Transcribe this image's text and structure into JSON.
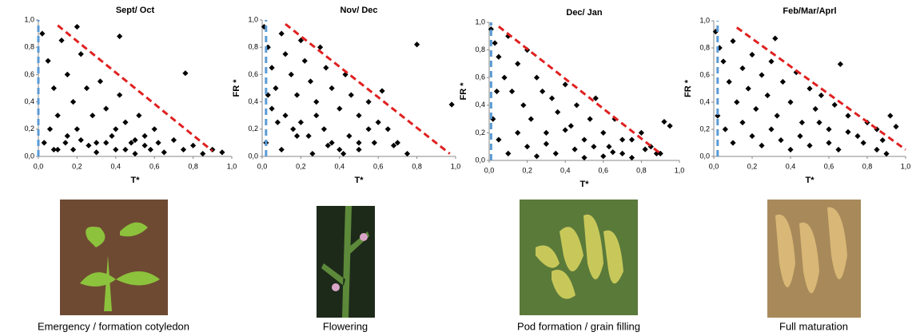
{
  "chart_data": [
    {
      "type": "scatter",
      "title": "Sept/ Oct",
      "xlabel": "T*",
      "caption": "Emergency / formation cotyledon",
      "color": "#000000",
      "xlim": [
        0,
        1
      ],
      "ylim": [
        0,
        1
      ],
      "xticks": [
        {
          "value": 0,
          "label": "0,0"
        },
        {
          "value": 0.2,
          "label": "0,2"
        },
        {
          "value": 0.4,
          "label": "0,4"
        },
        {
          "value": 0.6,
          "label": "0,6"
        },
        {
          "value": 0.8,
          "label": "0,8"
        },
        {
          "value": 1,
          "label": "1,0"
        }
      ],
      "yticks": [
        {
          "value": 0,
          "label": "0,0"
        },
        {
          "value": 0.2,
          "label": "0,2"
        },
        {
          "value": 0.4,
          "label": "0,4"
        },
        {
          "value": 0.6,
          "label": "0,6"
        },
        {
          "value": 0.8,
          "label": "0,8"
        },
        {
          "value": 1,
          "label": "1,0"
        }
      ],
      "x": [
        0.02,
        0.05,
        0.08,
        0.1,
        0.12,
        0.15,
        0.18,
        0.2,
        0.22,
        0.25,
        0.28,
        0.3,
        0.32,
        0.35,
        0.38,
        0.4,
        0.42,
        0.45,
        0.48,
        0.5,
        0.52,
        0.55,
        0.58,
        0.6,
        0.62,
        0.65,
        0.7,
        0.75,
        0.8,
        0.85,
        0.9,
        0.95,
        0.03,
        0.06,
        0.1,
        0.14,
        0.18,
        0.22,
        0.26,
        0.3,
        0.35,
        0.4,
        0.45,
        0.5,
        0.55,
        0.42,
        0.76,
        0.2,
        0.15,
        0.08
      ],
      "y": [
        0.9,
        0.7,
        0.5,
        0.3,
        0.85,
        0.6,
        0.4,
        0.2,
        0.75,
        0.5,
        0.3,
        0.1,
        0.55,
        0.35,
        0.15,
        0.05,
        0.45,
        0.25,
        0.1,
        0.02,
        0.3,
        0.15,
        0.05,
        0.2,
        0.1,
        0.03,
        0.12,
        0.05,
        0.08,
        0.02,
        0.05,
        0.03,
        0.1,
        0.2,
        0.05,
        0.1,
        0.05,
        0.12,
        0.08,
        0.03,
        0.1,
        0.2,
        0.05,
        0.12,
        0.08,
        0.88,
        0.61,
        0.95,
        0.15,
        0.05
      ],
      "lines": [
        {
          "color": "#e02020",
          "x": [
            0.1,
            0.9
          ],
          "y": [
            0.96,
            0.04
          ]
        },
        {
          "color": "#5b9bd5",
          "x": [
            0,
            0
          ],
          "y": [
            0,
            1
          ]
        }
      ]
    },
    {
      "type": "scatter",
      "title": "Nov/ Dec",
      "xlabel": "T*",
      "ylabel": "FR *",
      "caption": "Flowering",
      "color": "#000000",
      "xlim": [
        0,
        1
      ],
      "ylim": [
        0,
        1
      ],
      "xticks": [
        {
          "value": 0,
          "label": "0,0"
        },
        {
          "value": 0.2,
          "label": "0,2"
        },
        {
          "value": 0.4,
          "label": "0,4"
        },
        {
          "value": 0.6,
          "label": "0,6"
        },
        {
          "value": 0.8,
          "label": "0,8"
        },
        {
          "value": 1,
          "label": "1,0"
        }
      ],
      "yticks": [
        {
          "value": 0,
          "label": "0,0"
        },
        {
          "value": 0.2,
          "label": "0,2"
        },
        {
          "value": 0.4,
          "label": "0,4"
        },
        {
          "value": 0.6,
          "label": "0,6"
        },
        {
          "value": 0.8,
          "label": "0,8"
        },
        {
          "value": 1,
          "label": "1,0"
        }
      ],
      "x": [
        0.01,
        0.03,
        0.05,
        0.07,
        0.1,
        0.12,
        0.15,
        0.18,
        0.2,
        0.22,
        0.25,
        0.28,
        0.3,
        0.33,
        0.36,
        0.4,
        0.43,
        0.46,
        0.5,
        0.55,
        0.6,
        0.65,
        0.7,
        0.8,
        0.05,
        0.08,
        0.12,
        0.16,
        0.2,
        0.24,
        0.28,
        0.32,
        0.36,
        0.4,
        0.45,
        0.5,
        0.55,
        0.62,
        0.68,
        0.75,
        0.02,
        0.1,
        0.18,
        0.26,
        0.34,
        0.42,
        0.5,
        0.58,
        0.98,
        0.03
      ],
      "y": [
        0.95,
        0.8,
        0.65,
        0.5,
        0.9,
        0.75,
        0.6,
        0.45,
        0.85,
        0.7,
        0.55,
        0.4,
        0.8,
        0.65,
        0.5,
        0.35,
        0.6,
        0.45,
        0.3,
        0.4,
        0.25,
        0.2,
        0.1,
        0.82,
        0.35,
        0.25,
        0.3,
        0.2,
        0.25,
        0.15,
        0.3,
        0.2,
        0.1,
        0.05,
        0.15,
        0.1,
        0.2,
        0.48,
        0.08,
        0.02,
        0.1,
        0.05,
        0.15,
        0.02,
        0.08,
        0.02,
        0.05,
        0.1,
        0.38,
        0.45
      ],
      "lines": [
        {
          "color": "#e02020",
          "x": [
            0.12,
            0.97
          ],
          "y": [
            0.97,
            0.02
          ]
        },
        {
          "color": "#5b9bd5",
          "x": [
            0.02,
            0.02
          ],
          "y": [
            0,
            1
          ]
        }
      ]
    },
    {
      "type": "scatter",
      "title": "Dec/ Jan",
      "xlabel": "T*",
      "ylabel": "FR *",
      "caption": "Pod formation / grain filling",
      "color": "#000000",
      "xlim": [
        0,
        1
      ],
      "ylim": [
        0,
        1
      ],
      "xticks": [
        {
          "value": 0,
          "label": "0,0"
        },
        {
          "value": 0.2,
          "label": "0,2"
        },
        {
          "value": 0.4,
          "label": "0,4"
        },
        {
          "value": 0.6,
          "label": "0,6"
        },
        {
          "value": 0.8,
          "label": "0,8"
        },
        {
          "value": 1,
          "label": "1,0"
        }
      ],
      "yticks": [
        {
          "value": 0,
          "label": "0,0"
        },
        {
          "value": 0.2,
          "label": "0,2"
        },
        {
          "value": 0.4,
          "label": "0,4"
        },
        {
          "value": 0.6,
          "label": "0,6"
        },
        {
          "value": 0.8,
          "label": "0,8"
        },
        {
          "value": 1,
          "label": "1,0"
        }
      ],
      "x": [
        0.01,
        0.03,
        0.05,
        0.08,
        0.1,
        0.12,
        0.15,
        0.18,
        0.2,
        0.22,
        0.25,
        0.28,
        0.3,
        0.33,
        0.36,
        0.4,
        0.43,
        0.46,
        0.5,
        0.53,
        0.56,
        0.6,
        0.63,
        0.66,
        0.7,
        0.75,
        0.8,
        0.85,
        0.88,
        0.92,
        0.95,
        0.02,
        0.05,
        0.1,
        0.15,
        0.2,
        0.25,
        0.3,
        0.35,
        0.4,
        0.45,
        0.5,
        0.55,
        0.6,
        0.65,
        0.7,
        0.75,
        0.82,
        0.9,
        0.04
      ],
      "y": [
        0.95,
        0.85,
        0.75,
        0.6,
        0.9,
        0.5,
        0.7,
        0.4,
        0.8,
        0.3,
        0.6,
        0.5,
        0.2,
        0.45,
        0.35,
        0.55,
        0.25,
        0.4,
        0.15,
        0.3,
        0.45,
        0.2,
        0.1,
        0.3,
        0.05,
        0.15,
        0.2,
        0.1,
        0.05,
        0.28,
        0.25,
        0.3,
        0.15,
        0.05,
        0.2,
        0.1,
        0.03,
        0.12,
        0.05,
        0.22,
        0.08,
        0.02,
        0.1,
        0.03,
        0.06,
        0.15,
        0.02,
        0.08,
        0.05,
        0.5
      ],
      "lines": [
        {
          "color": "#e02020",
          "x": [
            0.05,
            0.9
          ],
          "y": [
            0.97,
            0.05
          ]
        },
        {
          "color": "#5b9bd5",
          "x": [
            0.01,
            0.01
          ],
          "y": [
            0,
            1
          ]
        }
      ]
    },
    {
      "type": "scatter",
      "title": "Feb/Mar/Aprl",
      "xlabel": "T*",
      "ylabel": "FR *",
      "caption": "Full maturation",
      "color": "#000000",
      "xlim": [
        0,
        1
      ],
      "ylim": [
        0,
        1
      ],
      "xticks": [
        {
          "value": 0,
          "label": "0,0"
        },
        {
          "value": 0.2,
          "label": "0,2"
        },
        {
          "value": 0.4,
          "label": "0,4"
        },
        {
          "value": 0.6,
          "label": "0,6"
        },
        {
          "value": 0.8,
          "label": "0,8"
        },
        {
          "value": 1,
          "label": "1,0"
        }
      ],
      "yticks": [
        {
          "value": 0,
          "label": "0,0"
        },
        {
          "value": 0.2,
          "label": "0,2"
        },
        {
          "value": 0.4,
          "label": "0,4"
        },
        {
          "value": 0.6,
          "label": "0,6"
        },
        {
          "value": 0.8,
          "label": "0,8"
        },
        {
          "value": 1,
          "label": "1,0"
        }
      ],
      "x": [
        0.01,
        0.03,
        0.05,
        0.08,
        0.1,
        0.12,
        0.15,
        0.18,
        0.2,
        0.22,
        0.25,
        0.28,
        0.3,
        0.33,
        0.36,
        0.4,
        0.43,
        0.46,
        0.5,
        0.53,
        0.56,
        0.6,
        0.63,
        0.66,
        0.7,
        0.75,
        0.8,
        0.85,
        0.88,
        0.92,
        0.95,
        0.02,
        0.06,
        0.1,
        0.15,
        0.2,
        0.25,
        0.3,
        0.35,
        0.4,
        0.45,
        0.5,
        0.55,
        0.6,
        0.65,
        0.7,
        0.78,
        0.85,
        0.9,
        0.32
      ],
      "y": [
        0.92,
        0.8,
        0.7,
        0.55,
        0.85,
        0.4,
        0.65,
        0.5,
        0.75,
        0.35,
        0.6,
        0.45,
        0.7,
        0.3,
        0.55,
        0.4,
        0.62,
        0.25,
        0.5,
        0.35,
        0.45,
        0.2,
        0.38,
        0.68,
        0.3,
        0.15,
        0.25,
        0.2,
        0.12,
        0.3,
        0.22,
        0.3,
        0.2,
        0.1,
        0.25,
        0.15,
        0.08,
        0.2,
        0.12,
        0.05,
        0.15,
        0.08,
        0.25,
        0.1,
        0.05,
        0.18,
        0.1,
        0.05,
        0.02,
        0.87
      ],
      "lines": [
        {
          "color": "#e02020",
          "x": [
            0.12,
            1.0
          ],
          "y": [
            0.95,
            0.05
          ]
        },
        {
          "color": "#5b9bd5",
          "x": [
            0.02,
            0.02
          ],
          "y": [
            0,
            1
          ]
        }
      ]
    }
  ]
}
